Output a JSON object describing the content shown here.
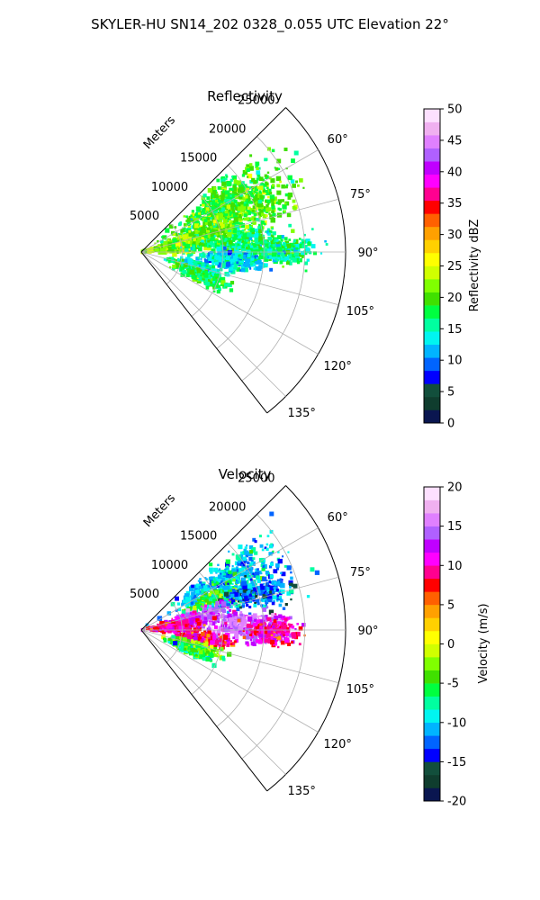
{
  "figure": {
    "title": "SKYLER-HU  SN14_202  0328_0.055 UTC Elevation 22°"
  },
  "chart_data": [
    {
      "type": "heatmap",
      "projection": "polar-sector",
      "title": "Reflectivity",
      "radial_label": "Meters",
      "azimuth_range_deg": [
        45,
        142
      ],
      "radial_range_m": [
        0,
        25000
      ],
      "radial_ticks": [
        "5000",
        "10000",
        "15000",
        "20000",
        "25000"
      ],
      "radial_tick_values": [
        5000,
        10000,
        15000,
        20000,
        25000
      ],
      "azimuth_ticks": [
        "60°",
        "75°",
        "90°",
        "105°",
        "120°",
        "135°"
      ],
      "azimuth_tick_values": [
        60,
        75,
        90,
        105,
        120,
        135
      ],
      "grid": true,
      "colorbar": {
        "label": "Reflectivity dBZ",
        "range": [
          0,
          50
        ],
        "ticks": [
          "0",
          "5",
          "10",
          "15",
          "20",
          "25",
          "30",
          "35",
          "40",
          "45",
          "50"
        ],
        "tick_values": [
          0,
          5,
          10,
          15,
          20,
          25,
          30,
          35,
          40,
          45,
          50
        ],
        "colors": [
          "#0a1650",
          "#0f3d2e",
          "#124f3c",
          "#0000ff",
          "#0064ff",
          "#00b4ff",
          "#00f5f0",
          "#00ffa0",
          "#00ff40",
          "#40e000",
          "#80ff00",
          "#d0ff00",
          "#ffff00",
          "#ffd000",
          "#ffa000",
          "#ff6000",
          "#ff0000",
          "#ff0090",
          "#ff00ff",
          "#c000ff",
          "#b060ff",
          "#e080ff",
          "#f0b0f0",
          "#fde0ff"
        ]
      },
      "echo_regions": [
        {
          "az": 58,
          "r": 12000,
          "az_spread": 9,
          "r_spread": 7000,
          "value": 19
        },
        {
          "az": 68,
          "r": 14000,
          "az_spread": 9,
          "r_spread": 6000,
          "value": 20
        },
        {
          "az": 75,
          "r": 8000,
          "az_spread": 10,
          "r_spread": 5000,
          "value": 21
        },
        {
          "az": 80,
          "r": 4000,
          "az_spread": 12,
          "r_spread": 3500,
          "value": 22
        },
        {
          "az": 84,
          "r": 12000,
          "az_spread": 8,
          "r_spread": 5000,
          "value": 17
        },
        {
          "az": 89,
          "r": 17000,
          "az_spread": 5,
          "r_spread": 4000,
          "value": 16
        },
        {
          "az": 96,
          "r": 11000,
          "az_spread": 5,
          "r_spread": 4000,
          "value": 13
        },
        {
          "az": 105,
          "r": 7000,
          "az_spread": 5,
          "r_spread": 3000,
          "value": 15
        },
        {
          "az": 112,
          "r": 8000,
          "az_spread": 5,
          "r_spread": 3000,
          "value": 18
        }
      ]
    },
    {
      "type": "heatmap",
      "projection": "polar-sector",
      "title": "Velocity",
      "radial_label": "Meters",
      "azimuth_range_deg": [
        45,
        142
      ],
      "radial_range_m": [
        0,
        25000
      ],
      "radial_ticks": [
        "5000",
        "10000",
        "15000",
        "20000",
        "25000"
      ],
      "radial_tick_values": [
        5000,
        10000,
        15000,
        20000,
        25000
      ],
      "azimuth_ticks": [
        "60°",
        "75°",
        "90°",
        "105°",
        "120°",
        "135°"
      ],
      "azimuth_tick_values": [
        60,
        75,
        90,
        105,
        120,
        135
      ],
      "grid": true,
      "colorbar": {
        "label": "Velocity (m/s)",
        "range": [
          -20,
          20
        ],
        "ticks": [
          "-20",
          "-15",
          "-10",
          "-5",
          "0",
          "5",
          "10",
          "15",
          "20"
        ],
        "tick_values": [
          -20,
          -15,
          -10,
          -5,
          0,
          5,
          10,
          15,
          20
        ],
        "colors": [
          "#0a1650",
          "#0f3d2e",
          "#124f3c",
          "#0000ff",
          "#0064ff",
          "#00b4ff",
          "#00f5f0",
          "#00ffa0",
          "#00ff40",
          "#40e000",
          "#80ff00",
          "#d0ff00",
          "#ffff00",
          "#ffd000",
          "#ffa000",
          "#ff6000",
          "#ff0000",
          "#ff0090",
          "#ff00ff",
          "#c000ff",
          "#b060ff",
          "#e080ff",
          "#f0b0f0",
          "#fde0ff"
        ]
      },
      "echo_regions": [
        {
          "az": 58,
          "r": 12000,
          "az_spread": 9,
          "r_spread": 7000,
          "value": -10
        },
        {
          "az": 68,
          "r": 10000,
          "az_spread": 6,
          "r_spread": 4000,
          "value": -5
        },
        {
          "az": 72,
          "r": 15000,
          "az_spread": 8,
          "r_spread": 5000,
          "value": -12
        },
        {
          "az": 78,
          "r": 7000,
          "az_spread": 8,
          "r_spread": 4000,
          "value": 14
        },
        {
          "az": 84,
          "r": 4000,
          "az_spread": 10,
          "r_spread": 3000,
          "value": 10
        },
        {
          "az": 87,
          "r": 13000,
          "az_spread": 6,
          "r_spread": 4000,
          "value": 15
        },
        {
          "az": 91,
          "r": 16000,
          "az_spread": 5,
          "r_spread": 3000,
          "value": 10
        },
        {
          "az": 98,
          "r": 8000,
          "az_spread": 5,
          "r_spread": 3000,
          "value": 9
        },
        {
          "az": 107,
          "r": 7000,
          "az_spread": 5,
          "r_spread": 3000,
          "value": -3
        },
        {
          "az": 112,
          "r": 6500,
          "az_spread": 4,
          "r_spread": 2500,
          "value": -6
        }
      ]
    }
  ]
}
